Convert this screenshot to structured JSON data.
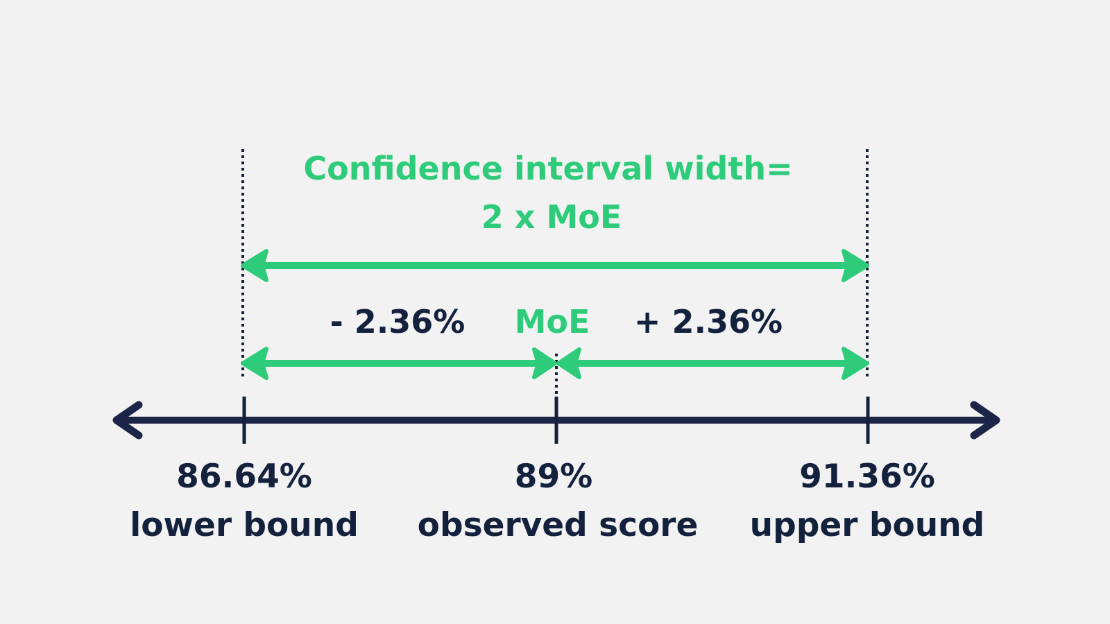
{
  "title": {
    "line1": "Confidence interval width=",
    "line2": "2 x MoE"
  },
  "moe": {
    "label": "MoE",
    "minus": "- 2.36%",
    "plus": "+ 2.36%"
  },
  "points": {
    "lower": {
      "value": "86.64%",
      "label": "lower bound"
    },
    "observed": {
      "value": "89%",
      "label": "observed score"
    },
    "upper": {
      "value": "91.36%",
      "label": "upper bound"
    }
  },
  "colors": {
    "background": "#f2f2f2",
    "accent": "#2ecc7a",
    "axis": "#1c2447",
    "text": "#14213d"
  }
}
